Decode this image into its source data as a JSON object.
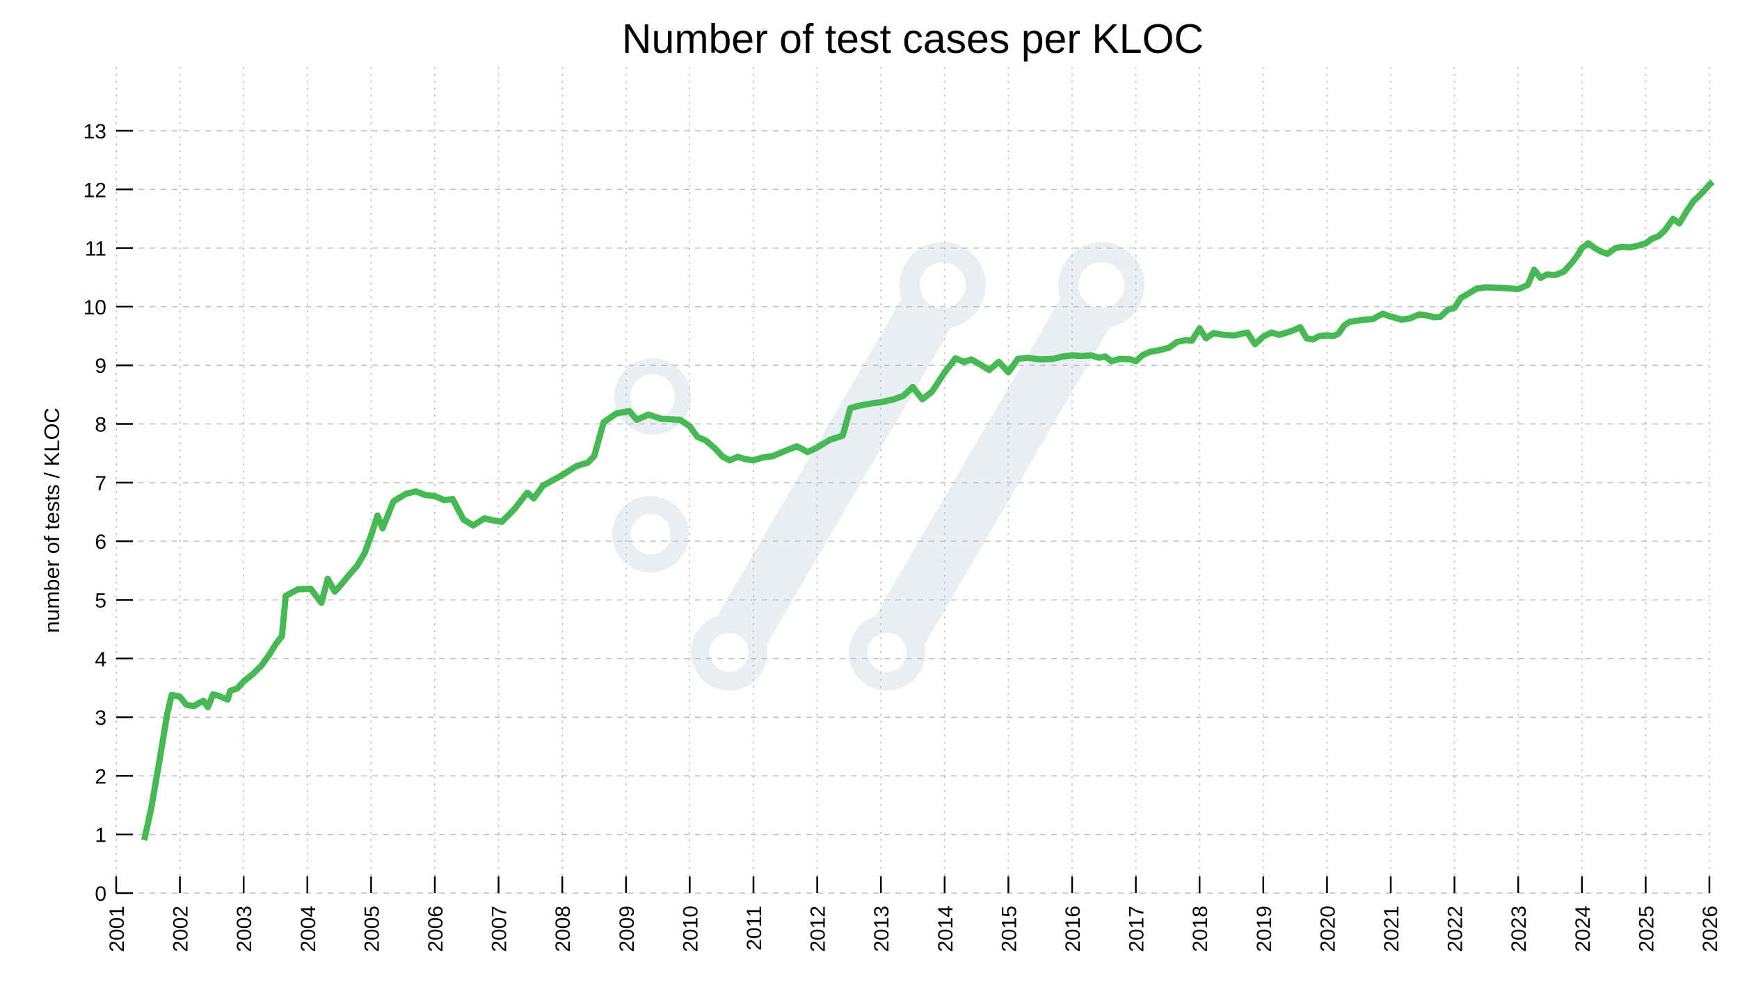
{
  "page": {
    "background_color": "#ffffff",
    "text_color": "#000000"
  },
  "chart_data": {
    "type": "line",
    "title": "Number of test cases per KLOC",
    "xlabel": "",
    "ylabel": "number of tests / KLOC",
    "x_range": [
      2001,
      2026
    ],
    "y_range": [
      0,
      13
    ],
    "x_ticks": [
      2001,
      2002,
      2003,
      2004,
      2005,
      2006,
      2007,
      2008,
      2009,
      2010,
      2011,
      2012,
      2013,
      2014,
      2015,
      2016,
      2017,
      2018,
      2019,
      2020,
      2021,
      2022,
      2023,
      2024,
      2025,
      2026
    ],
    "y_ticks": [
      0,
      1,
      2,
      3,
      4,
      5,
      6,
      7,
      8,
      9,
      10,
      11,
      12,
      13
    ],
    "grid": true,
    "legend": false,
    "colors": {
      "line": "#46b955",
      "grid": "#bdbdbd",
      "axis": "#000000",
      "watermark": "#e8eef1"
    },
    "series": [
      {
        "name": "number of tests / KLOC",
        "color": "#46b955",
        "x": [
          2001.44,
          2001.55,
          2001.67,
          2001.8,
          2001.87,
          2002,
          2002.1,
          2002.22,
          2002.3,
          2002.37,
          2002.44,
          2002.52,
          2002.62,
          2002.75,
          2002.79,
          2002.9,
          2003,
          2003.15,
          2003.28,
          2003.4,
          2003.5,
          2003.6,
          2003.66,
          2003.85,
          2004.05,
          2004.22,
          2004.32,
          2004.43,
          2004.53,
          2004.68,
          2004.78,
          2004.9,
          2005,
          2005.1,
          2005.18,
          2005.35,
          2005.55,
          2005.7,
          2005.85,
          2006,
          2006.15,
          2006.28,
          2006.45,
          2006.6,
          2006.78,
          2006.9,
          2007.05,
          2007.25,
          2007.45,
          2007.55,
          2007.7,
          2008,
          2008.22,
          2008.4,
          2008.5,
          2008.65,
          2008.85,
          2009.05,
          2009.17,
          2009.35,
          2009.55,
          2009.85,
          2010,
          2010.12,
          2010.25,
          2010.4,
          2010.52,
          2010.63,
          2010.75,
          2010.87,
          2011,
          2011.15,
          2011.3,
          2011.45,
          2011.68,
          2011.85,
          2012,
          2012.2,
          2012.4,
          2012.52,
          2012.65,
          2012.85,
          2013,
          2013.2,
          2013.35,
          2013.5,
          2013.65,
          2013.8,
          2014,
          2014.1,
          2014.17,
          2014.3,
          2014.42,
          2014.55,
          2014.7,
          2014.85,
          2015,
          2015.15,
          2015.3,
          2015.5,
          2015.7,
          2015.85,
          2016,
          2016.15,
          2016.3,
          2016.42,
          2016.52,
          2016.62,
          2016.75,
          2016.92,
          2017,
          2017.1,
          2017.22,
          2017.38,
          2017.52,
          2017.65,
          2017.78,
          2017.88,
          2018,
          2018.1,
          2018.22,
          2018.38,
          2018.55,
          2018.75,
          2018.87,
          2019,
          2019.13,
          2019.25,
          2019.4,
          2019.5,
          2019.58,
          2019.68,
          2019.78,
          2019.88,
          2020,
          2020.1,
          2020.18,
          2020.27,
          2020.35,
          2020.47,
          2020.6,
          2020.72,
          2020.8,
          2020.88,
          2020.97,
          2021.07,
          2021.17,
          2021.3,
          2021.45,
          2021.57,
          2021.68,
          2021.78,
          2021.9,
          2022,
          2022.1,
          2022.2,
          2022.35,
          2022.5,
          2022.7,
          2022.88,
          2023,
          2023.15,
          2023.25,
          2023.35,
          2023.45,
          2023.58,
          2023.72,
          2023.85,
          2023.92,
          2024,
          2024.1,
          2024.2,
          2024.3,
          2024.4,
          2024.53,
          2024.63,
          2024.75,
          2024.88,
          2025,
          2025.1,
          2025.2,
          2025.3,
          2025.43,
          2025.53,
          2025.65,
          2025.75,
          2025.83,
          2025.92,
          2026,
          2026.05
        ],
        "y": [
          0.9,
          1.45,
          2.2,
          3.05,
          3.38,
          3.35,
          3.21,
          3.19,
          3.24,
          3.28,
          3.17,
          3.39,
          3.36,
          3.3,
          3.45,
          3.49,
          3.61,
          3.74,
          3.88,
          4.06,
          4.24,
          4.38,
          5.07,
          5.18,
          5.19,
          4.95,
          5.36,
          5.14,
          5.26,
          5.46,
          5.58,
          5.8,
          6.1,
          6.44,
          6.22,
          6.68,
          6.81,
          6.85,
          6.79,
          6.77,
          6.7,
          6.72,
          6.37,
          6.27,
          6.39,
          6.36,
          6.33,
          6.55,
          6.83,
          6.73,
          6.95,
          7.13,
          7.28,
          7.34,
          7.45,
          8.03,
          8.18,
          8.22,
          8.07,
          8.16,
          8.09,
          8.07,
          7.96,
          7.78,
          7.72,
          7.58,
          7.44,
          7.38,
          7.44,
          7.4,
          7.38,
          7.43,
          7.45,
          7.52,
          7.62,
          7.52,
          7.6,
          7.73,
          7.8,
          8.27,
          8.31,
          8.35,
          8.37,
          8.42,
          8.48,
          8.63,
          8.42,
          8.55,
          8.88,
          9.02,
          9.12,
          9.06,
          9.1,
          9.02,
          8.92,
          9.06,
          8.88,
          9.11,
          9.13,
          9.1,
          9.11,
          9.15,
          9.17,
          9.16,
          9.17,
          9.13,
          9.15,
          9.07,
          9.11,
          9.1,
          9.07,
          9.17,
          9.23,
          9.26,
          9.3,
          9.4,
          9.43,
          9.42,
          9.63,
          9.46,
          9.55,
          9.52,
          9.51,
          9.56,
          9.36,
          9.49,
          9.56,
          9.52,
          9.57,
          9.61,
          9.65,
          9.46,
          9.44,
          9.5,
          9.51,
          9.5,
          9.54,
          9.68,
          9.74,
          9.76,
          9.78,
          9.79,
          9.84,
          9.88,
          9.84,
          9.81,
          9.78,
          9.8,
          9.87,
          9.85,
          9.82,
          9.83,
          9.95,
          9.98,
          10.15,
          10.21,
          10.31,
          10.33,
          10.32,
          10.31,
          10.3,
          10.37,
          10.63,
          10.49,
          10.55,
          10.54,
          10.6,
          10.76,
          10.86,
          11,
          11.08,
          11,
          10.94,
          10.9,
          11,
          11.02,
          11.01,
          11.04,
          11.08,
          11.16,
          11.2,
          11.3,
          11.5,
          11.42,
          11.64,
          11.8,
          11.88,
          11.98,
          12.08,
          12.13
        ]
      }
    ]
  }
}
